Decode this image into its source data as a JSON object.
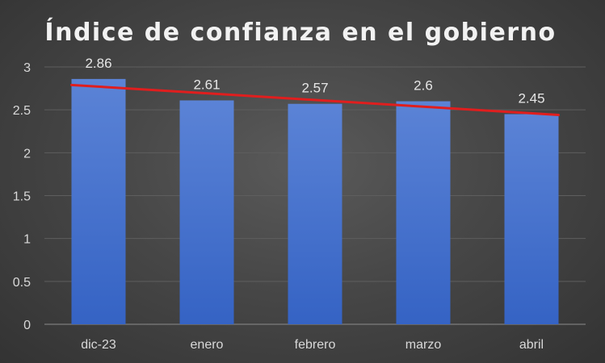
{
  "chart_data": {
    "type": "bar",
    "title": "Índice de confianza en el gobierno",
    "xlabel": "",
    "ylabel": "",
    "categories": [
      "dic-23",
      "enero",
      "febrero",
      "marzo",
      "abril"
    ],
    "values": [
      2.86,
      2.61,
      2.57,
      2.6,
      2.45
    ],
    "data_labels": [
      "2.86",
      "2.61",
      "2.57",
      "2.6",
      "2.45"
    ],
    "ylim": [
      0,
      3
    ],
    "yticks": [
      0,
      0.5,
      1,
      1.5,
      2,
      2.5,
      3
    ],
    "ytick_labels": [
      "0",
      "0.5",
      "1",
      "1.5",
      "2",
      "2.5",
      "3"
    ],
    "grid": true,
    "legend": "none",
    "trendline": {
      "type": "linear",
      "start_value": 2.79,
      "end_value": 2.44
    },
    "colors": {
      "bar_top": "#5b83d6",
      "bar_bottom": "#3563c4",
      "trendline": "#e01e1e",
      "background": "#404040"
    }
  }
}
